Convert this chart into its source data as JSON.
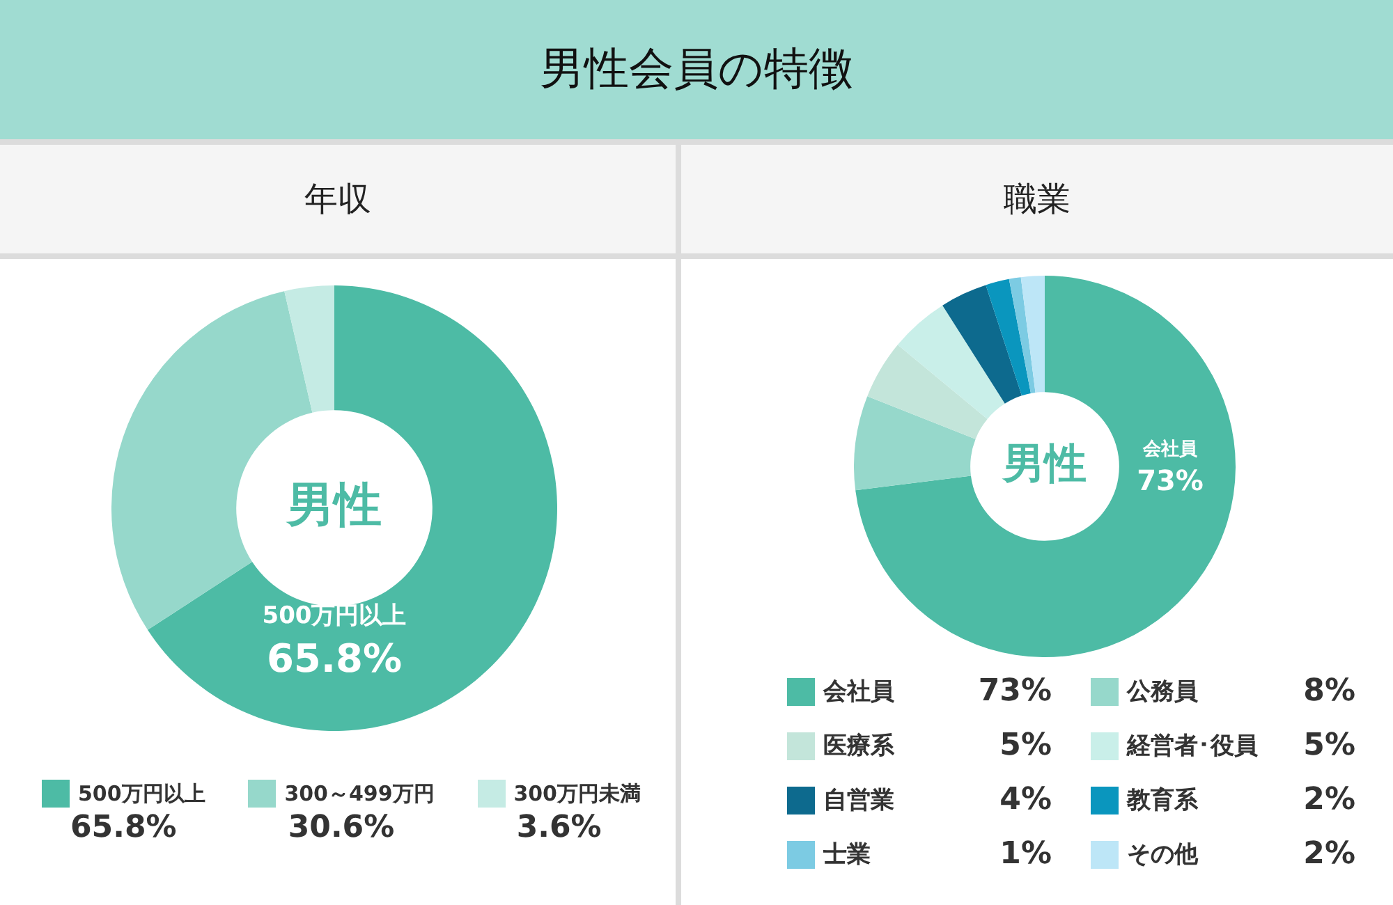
{
  "chart_data": [
    {
      "type": "donut",
      "title": "男性会員の特徴",
      "subtitle": "年収",
      "categories": [
        "500万円以上",
        "300～499万円",
        "300万円未満"
      ],
      "values": [
        65.8,
        30.6,
        3.6
      ],
      "colors": [
        "#4dbba5",
        "#96d8cb",
        "#c5ebe4"
      ],
      "value_labels": [
        "65.8%",
        "30.6%",
        "3.6%"
      ],
      "legend": "bottom",
      "annotations": [
        "男性",
        "500万円以上",
        "65.8%"
      ]
    },
    {
      "type": "donut",
      "title": "職業",
      "categories": [
        "会社員",
        "公務員",
        "医療系",
        "経営者･役員",
        "自営業",
        "教育系",
        "士業",
        "その他"
      ],
      "values": [
        73,
        8,
        5,
        5,
        4,
        2,
        1,
        2
      ],
      "colors": [
        "#4dbba5",
        "#96d8cb",
        "#c3e5da",
        "#c9efe9",
        "#0d6a8e",
        "#0a96be",
        "#7ccbe3",
        "#bde6f7"
      ],
      "value_labels": [
        "73%",
        "8%",
        "5%",
        "5%",
        "4%",
        "2%",
        "1%",
        "2%"
      ],
      "legend": "bottom",
      "annotations": [
        "男性",
        "会社員",
        "73%"
      ]
    }
  ]
}
